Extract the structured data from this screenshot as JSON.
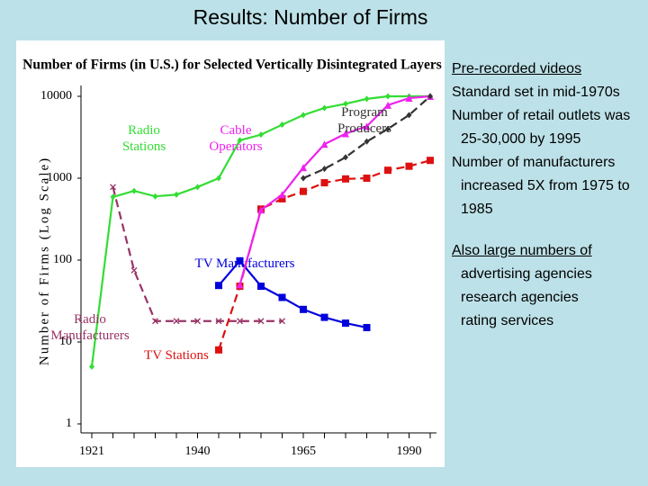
{
  "title": "Results: Number of Firms",
  "chart_data": {
    "type": "line",
    "title": "Number of Firms (in U.S.) for Selected Vertically Disintegrated Layers",
    "y_label": "Number of Firms (Log Scale)",
    "categories": [
      "1921",
      null,
      null,
      null,
      null,
      "1940",
      null,
      null,
      null,
      null,
      "1965",
      null,
      null,
      null,
      null,
      "1990",
      null
    ],
    "ylim": [
      1,
      10000
    ],
    "yticks": [
      1,
      10,
      100,
      1000,
      10000
    ],
    "log_scale": true,
    "grid": false,
    "series": [
      {
        "name": "Radio Stations",
        "color": "#33dd33",
        "dashed": false,
        "marker": "diamond",
        "values": [
          5,
          590,
          700,
          600,
          630,
          780,
          1000,
          2900,
          3400,
          4500,
          5900,
          7200,
          8100,
          9300,
          10000,
          10000,
          10000
        ]
      },
      {
        "name": "Radio Manufacturers",
        "color": "#993366",
        "dashed": true,
        "marker": "x",
        "values": [
          null,
          780,
          75,
          18,
          18,
          18,
          18,
          18,
          18,
          18,
          null,
          null,
          null,
          null,
          null,
          null,
          null
        ]
      },
      {
        "name": "TV Stations",
        "color": "#dd1111",
        "dashed": true,
        "marker": "square",
        "values": [
          null,
          null,
          null,
          null,
          null,
          null,
          8,
          48,
          420,
          560,
          690,
          880,
          980,
          1000,
          1250,
          1400,
          1650
        ]
      },
      {
        "name": "TV Manufacturers",
        "color": "#0000dd",
        "dashed": false,
        "marker": "square",
        "values": [
          null,
          null,
          null,
          null,
          null,
          null,
          49,
          98,
          48,
          35,
          25,
          20,
          17,
          15,
          null,
          null,
          null
        ]
      },
      {
        "name": "Cable Operators",
        "color": "#ee22ee",
        "dashed": false,
        "marker": "triangle",
        "values": [
          null,
          null,
          null,
          null,
          null,
          null,
          null,
          50,
          410,
          630,
          1350,
          2600,
          3500,
          4300,
          7800,
          9500,
          10000
        ]
      },
      {
        "name": "Program Producers",
        "color": "#333333",
        "dashed": true,
        "marker": "diamond",
        "values": [
          null,
          null,
          null,
          null,
          null,
          null,
          null,
          null,
          null,
          null,
          1000,
          1300,
          1800,
          2800,
          4000,
          5900,
          10000
        ]
      }
    ]
  },
  "notes": {
    "items": [
      "Pre-recorded videos",
      "Standard set in mid-1970s",
      "Number of retail outlets was 25-30,000 by 1995",
      "Number of manufacturers increased 5X from 1975 to 1985"
    ],
    "also": "Also large numbers of",
    "sub_items": [
      "advertising agencies",
      "research agencies",
      "rating services"
    ]
  }
}
